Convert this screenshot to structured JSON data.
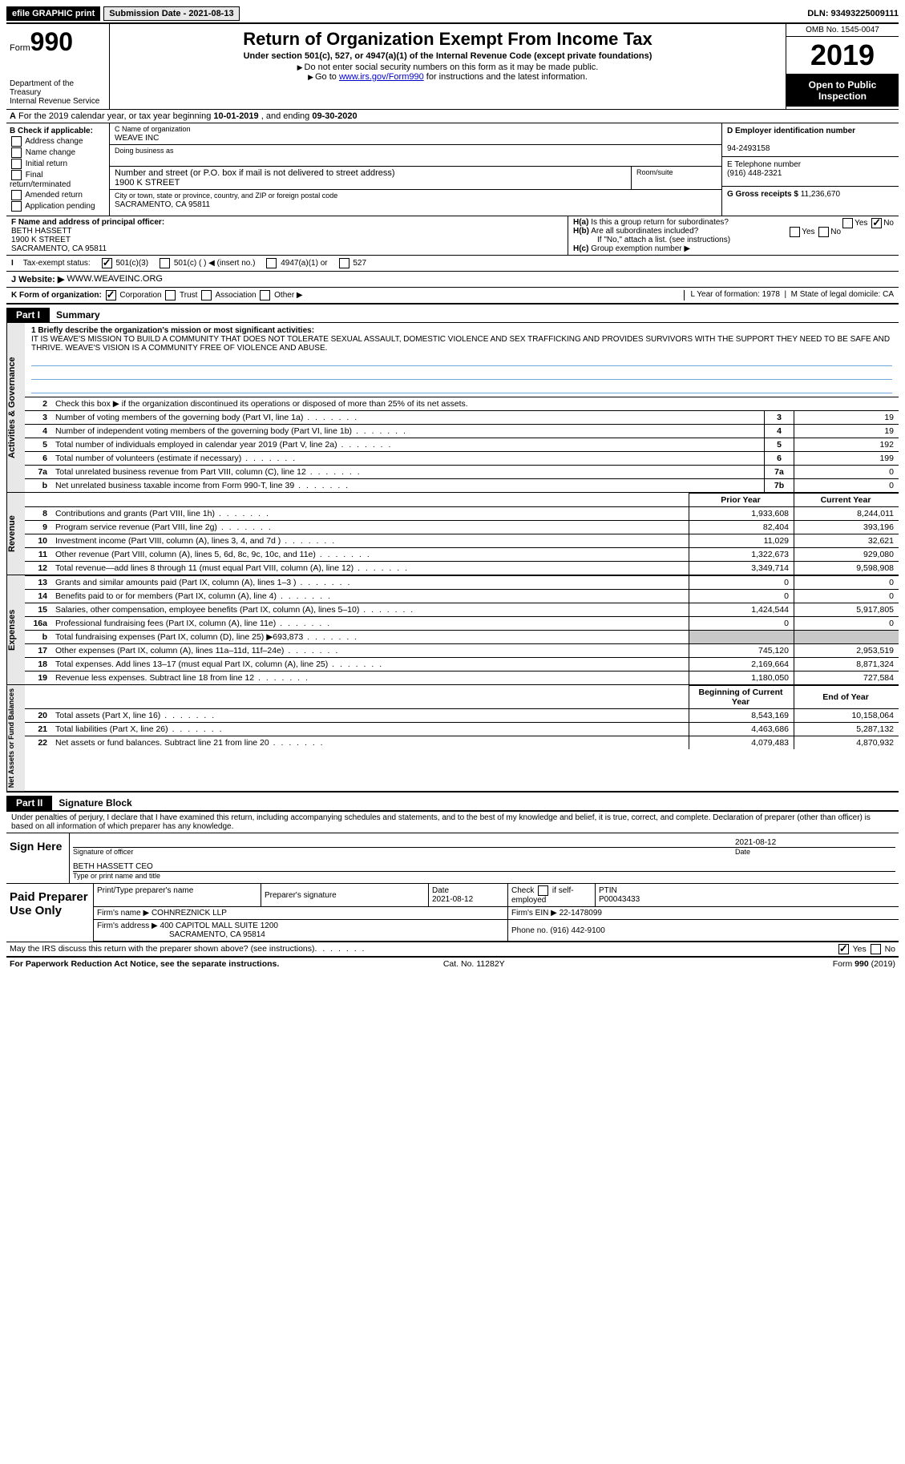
{
  "topbar": {
    "efile": "efile GRAPHIC print",
    "submission": "Submission Date - 2021-08-13",
    "dln": "DLN: 93493225009111"
  },
  "header": {
    "form_label": "Form",
    "form_number": "990",
    "dept1": "Department of the Treasury",
    "dept2": "Internal Revenue Service",
    "title": "Return of Organization Exempt From Income Tax",
    "sub": "Under section 501(c), 527, or 4947(a)(1) of the Internal Revenue Code (except private foundations)",
    "note1": "Do not enter social security numbers on this form as it may be made public.",
    "note2_a": "Go to ",
    "note2_link": "www.irs.gov/Form990",
    "note2_b": " for instructions and the latest information.",
    "omb": "OMB No. 1545-0047",
    "year": "2019",
    "open": "Open to Public Inspection"
  },
  "yearline": {
    "a": "For the 2019 calendar year, or tax year beginning ",
    "b1": "10-01-2019",
    "c": " , and ending ",
    "b2": "09-30-2020"
  },
  "checkB": {
    "title": "B Check if applicable:",
    "items": [
      "Address change",
      "Name change",
      "Initial return",
      "Final return/terminated",
      "Amended return",
      "Application pending"
    ]
  },
  "entity": {
    "c_lbl": "C Name of organization",
    "name": "WEAVE INC",
    "dba_lbl": "Doing business as",
    "addr_lbl": "Number and street (or P.O. box if mail is not delivered to street address)",
    "room_lbl": "Room/suite",
    "addr": "1900 K STREET",
    "city_lbl": "City or town, state or province, country, and ZIP or foreign postal code",
    "city": "SACRAMENTO, CA  95811",
    "f_lbl": "F Name and address of principal officer:",
    "f_name": "BETH HASSETT",
    "f_addr1": "1900 K STREET",
    "f_addr2": "SACRAMENTO, CA  95811"
  },
  "entityRight": {
    "d_lbl": "D Employer identification number",
    "ein": "94-2493158",
    "e_lbl": "E Telephone number",
    "phone": "(916) 448-2321",
    "g_lbl": "G Gross receipts $",
    "gross": "11,236,670"
  },
  "h": {
    "ha": "Is this a group return for subordinates?",
    "hb": "Are all subordinates included?",
    "hb_note": "If \"No,\" attach a list. (see instructions)",
    "hc": "Group exemption number ▶",
    "yes": "Yes",
    "no": "No"
  },
  "tax": {
    "lbl": "Tax-exempt status:",
    "a": "501(c)(3)",
    "b": "501(c) (  ) ◀ (insert no.)",
    "c": "4947(a)(1) or",
    "d": "527"
  },
  "website": {
    "lbl": "J   Website: ▶",
    "val": "WWW.WEAVEINC.ORG"
  },
  "k": {
    "lbl": "K Form of organization:",
    "corp": "Corporation",
    "trust": "Trust",
    "assoc": "Association",
    "other": "Other ▶",
    "l": "L Year of formation: 1978",
    "m": "M State of legal domicile: CA"
  },
  "part1": {
    "num": "Part I",
    "title": "Summary"
  },
  "mission": {
    "lbl": "1  Briefly describe the organization's mission or most significant activities:",
    "text": "IT IS WEAVE'S MISSION TO BUILD A COMMUNITY THAT DOES NOT TOLERATE SEXUAL ASSAULT, DOMESTIC VIOLENCE AND SEX TRAFFICKING AND PROVIDES SURVIVORS WITH THE SUPPORT THEY NEED TO BE SAFE AND THRIVE. WEAVE'S VISION IS A COMMUNITY FREE OF VIOLENCE AND ABUSE."
  },
  "gov": {
    "l2": "Check this box ▶        if the organization discontinued its operations or disposed of more than 25% of its net assets.",
    "rows": [
      {
        "n": "3",
        "t": "Number of voting members of the governing body (Part VI, line 1a)",
        "box": "3",
        "v": "19"
      },
      {
        "n": "4",
        "t": "Number of independent voting members of the governing body (Part VI, line 1b)",
        "box": "4",
        "v": "19"
      },
      {
        "n": "5",
        "t": "Total number of individuals employed in calendar year 2019 (Part V, line 2a)",
        "box": "5",
        "v": "192"
      },
      {
        "n": "6",
        "t": "Total number of volunteers (estimate if necessary)",
        "box": "6",
        "v": "199"
      },
      {
        "n": "7a",
        "t": "Total unrelated business revenue from Part VIII, column (C), line 12",
        "box": "7a",
        "v": "0"
      },
      {
        "n": "b",
        "t": "Net unrelated business taxable income from Form 990-T, line 39",
        "box": "7b",
        "v": "0"
      }
    ]
  },
  "rev": {
    "hdr_prior": "Prior Year",
    "hdr_curr": "Current Year",
    "rows": [
      {
        "n": "8",
        "t": "Contributions and grants (Part VIII, line 1h)",
        "p": "1,933,608",
        "c": "8,244,011"
      },
      {
        "n": "9",
        "t": "Program service revenue (Part VIII, line 2g)",
        "p": "82,404",
        "c": "393,196"
      },
      {
        "n": "10",
        "t": "Investment income (Part VIII, column (A), lines 3, 4, and 7d )",
        "p": "11,029",
        "c": "32,621"
      },
      {
        "n": "11",
        "t": "Other revenue (Part VIII, column (A), lines 5, 6d, 8c, 9c, 10c, and 11e)",
        "p": "1,322,673",
        "c": "929,080"
      },
      {
        "n": "12",
        "t": "Total revenue—add lines 8 through 11 (must equal Part VIII, column (A), line 12)",
        "p": "3,349,714",
        "c": "9,598,908"
      }
    ]
  },
  "exp": {
    "rows": [
      {
        "n": "13",
        "t": "Grants and similar amounts paid (Part IX, column (A), lines 1–3 )",
        "p": "0",
        "c": "0"
      },
      {
        "n": "14",
        "t": "Benefits paid to or for members (Part IX, column (A), line 4)",
        "p": "0",
        "c": "0"
      },
      {
        "n": "15",
        "t": "Salaries, other compensation, employee benefits (Part IX, column (A), lines 5–10)",
        "p": "1,424,544",
        "c": "5,917,805"
      },
      {
        "n": "16a",
        "t": "Professional fundraising fees (Part IX, column (A), line 11e)",
        "p": "0",
        "c": "0"
      },
      {
        "n": "b",
        "t": "Total fundraising expenses (Part IX, column (D), line 25) ▶693,873",
        "p": "",
        "c": "",
        "shade": true
      },
      {
        "n": "17",
        "t": "Other expenses (Part IX, column (A), lines 11a–11d, 11f–24e)",
        "p": "745,120",
        "c": "2,953,519"
      },
      {
        "n": "18",
        "t": "Total expenses. Add lines 13–17 (must equal Part IX, column (A), line 25)",
        "p": "2,169,664",
        "c": "8,871,324"
      },
      {
        "n": "19",
        "t": "Revenue less expenses. Subtract line 18 from line 12",
        "p": "1,180,050",
        "c": "727,584"
      }
    ]
  },
  "net": {
    "hdr_prior": "Beginning of Current Year",
    "hdr_curr": "End of Year",
    "rows": [
      {
        "n": "20",
        "t": "Total assets (Part X, line 16)",
        "p": "8,543,169",
        "c": "10,158,064"
      },
      {
        "n": "21",
        "t": "Total liabilities (Part X, line 26)",
        "p": "4,463,686",
        "c": "5,287,132"
      },
      {
        "n": "22",
        "t": "Net assets or fund balances. Subtract line 21 from line 20",
        "p": "4,079,483",
        "c": "4,870,932"
      }
    ]
  },
  "part2": {
    "num": "Part II",
    "title": "Signature Block"
  },
  "sig": {
    "intro": "Under penalties of perjury, I declare that I have examined this return, including accompanying schedules and statements, and to the best of my knowledge and belief, it is true, correct, and complete. Declaration of preparer (other than officer) is based on all information of which preparer has any knowledge.",
    "here": "Sign Here",
    "sig_lbl": "Signature of officer",
    "date_lbl": "Date",
    "date": "2021-08-12",
    "name": "BETH HASSETT CEO",
    "name_lbl": "Type or print name and title"
  },
  "prep": {
    "left": "Paid Preparer Use Only",
    "h1": "Print/Type preparer's name",
    "h2": "Preparer's signature",
    "h3_a": "Date",
    "h3_b": "2021-08-12",
    "h4_a": "Check",
    "h4_b": "if self-employed",
    "h5_a": "PTIN",
    "h5_b": "P00043433",
    "firm_lbl": "Firm's name    ▶",
    "firm": "COHNREZNICK LLP",
    "ein_lbl": "Firm's EIN ▶",
    "ein": "22-1478099",
    "addr_lbl": "Firm's address ▶",
    "addr1": "400 CAPITOL MALL SUITE 1200",
    "addr2": "SACRAMENTO, CA  95814",
    "phone_lbl": "Phone no.",
    "phone": "(916) 442-9100"
  },
  "bottom": {
    "q": "May the IRS discuss this return with the preparer shown above? (see instructions)",
    "yes": "Yes",
    "no": "No"
  },
  "foot": {
    "l": "For Paperwork Reduction Act Notice, see the separate instructions.",
    "c": "Cat. No. 11282Y",
    "r": "Form 990 (2019)"
  },
  "sides": {
    "gov": "Activities & Governance",
    "rev": "Revenue",
    "exp": "Expenses",
    "net": "Net Assets or Fund Balances"
  }
}
